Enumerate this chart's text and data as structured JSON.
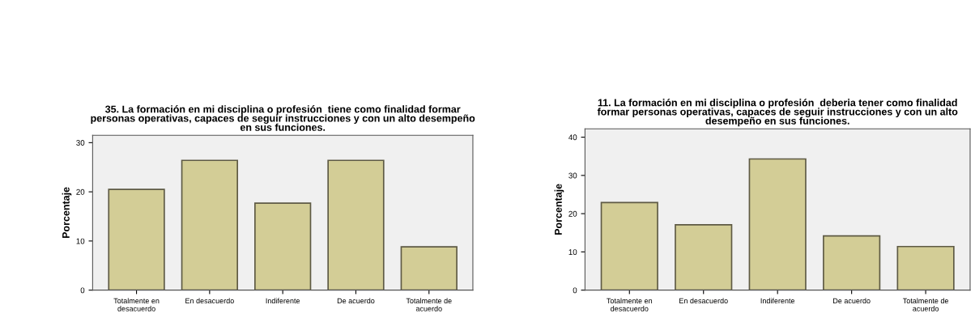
{
  "chart_data": [
    {
      "type": "bar",
      "title": "35. La formación en mi disciplina o profesión  tiene como finalidad formar\npersonas operativas, capaces de seguir instrucciones y con un alto desempeño\nen sus funciones.",
      "ylabel": "Porcentaje",
      "categories": [
        "Totalmente en\ndesacuerdo",
        "En desacuerdo",
        "Indiferente",
        "De acuerdo",
        "Totalmente de\nacuerdo"
      ],
      "values": [
        20.5,
        26.4,
        17.7,
        26.4,
        8.8
      ],
      "color": "#d3cd96",
      "ylim": [
        0,
        31.5
      ],
      "yticks": [
        0,
        10,
        20,
        30
      ],
      "grid": false
    },
    {
      "type": "bar",
      "title": "11. La formación en mi disciplina o profesión  deberia tener como finalidad\nformar personas operativas, capaces de seguir instrucciones y con un alto\ndesempeño en sus funciones.",
      "ylabel": "Porcentaje",
      "categories": [
        "Totalmente en\ndesacuerdo",
        "En desacuerdo",
        "Indiferente",
        "De acuerdo",
        "Totalmente de\nacuerdo"
      ],
      "values": [
        22.9,
        17.1,
        34.3,
        14.2,
        11.4
      ],
      "color": "#d3cd96",
      "ylim": [
        0,
        42.2
      ],
      "yticks": [
        0,
        10,
        20,
        30,
        40
      ],
      "grid": false
    }
  ]
}
